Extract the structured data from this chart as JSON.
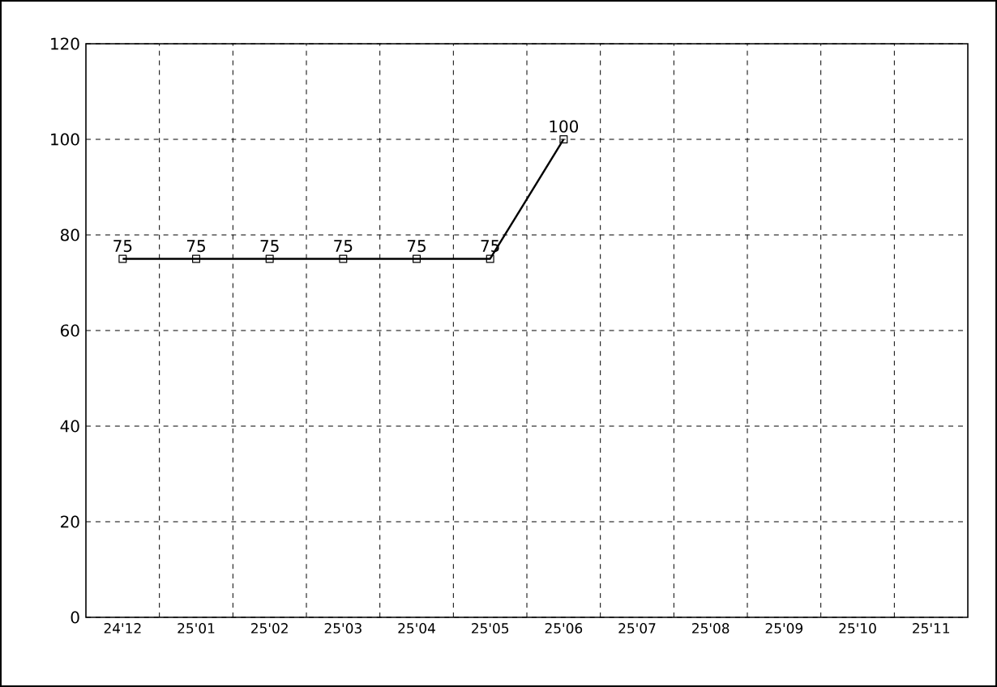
{
  "chart_data": {
    "type": "line",
    "categories": [
      "24'12",
      "25'01",
      "25'02",
      "25'03",
      "25'04",
      "25'05",
      "25'06",
      "25'07",
      "25'08",
      "25'09",
      "25'10",
      "25'11"
    ],
    "values": [
      75,
      75,
      75,
      75,
      75,
      75,
      100,
      null,
      null,
      null,
      null,
      null
    ],
    "color": "#000000",
    "ylim": [
      0,
      120
    ],
    "yticks": [
      0,
      20,
      40,
      60,
      80,
      100,
      120
    ],
    "grid": true,
    "marker": "square",
    "line_style": "solid",
    "data_labels": true
  }
}
